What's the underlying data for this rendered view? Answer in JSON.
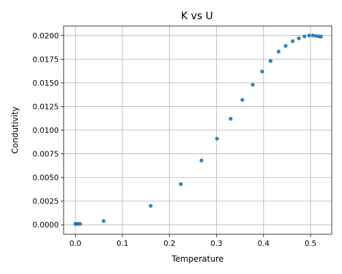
{
  "chart_data": {
    "type": "scatter",
    "title": "K vs U",
    "xlabel": "Temperature",
    "ylabel": "Condutivity",
    "xlim": [
      -0.025,
      0.545
    ],
    "ylim": [
      -0.001,
      0.021
    ],
    "xticks": [
      0.0,
      0.1,
      0.2,
      0.3,
      0.4,
      0.5
    ],
    "xtick_labels": [
      "0.0",
      "0.1",
      "0.2",
      "0.3",
      "0.4",
      "0.5"
    ],
    "yticks": [
      0.0,
      0.0025,
      0.005,
      0.0075,
      0.01,
      0.0125,
      0.015,
      0.0175,
      0.02
    ],
    "ytick_labels": [
      "0.0000",
      "0.0025",
      "0.0050",
      "0.0075",
      "0.0100",
      "0.0125",
      "0.0150",
      "0.0175",
      "0.0200"
    ],
    "grid": true,
    "color": "#1f77b4",
    "points": [
      {
        "x": 0.0,
        "y": 0.0001
      },
      {
        "x": 0.003,
        "y": 0.0001
      },
      {
        "x": 0.006,
        "y": 0.0001
      },
      {
        "x": 0.01,
        "y": 0.0001
      },
      {
        "x": 0.06,
        "y": 0.0004
      },
      {
        "x": 0.16,
        "y": 0.002
      },
      {
        "x": 0.224,
        "y": 0.0043
      },
      {
        "x": 0.268,
        "y": 0.0068
      },
      {
        "x": 0.301,
        "y": 0.0091
      },
      {
        "x": 0.33,
        "y": 0.0112
      },
      {
        "x": 0.355,
        "y": 0.0132
      },
      {
        "x": 0.377,
        "y": 0.0148
      },
      {
        "x": 0.397,
        "y": 0.0162
      },
      {
        "x": 0.415,
        "y": 0.0173
      },
      {
        "x": 0.432,
        "y": 0.0183
      },
      {
        "x": 0.447,
        "y": 0.0189
      },
      {
        "x": 0.462,
        "y": 0.0194
      },
      {
        "x": 0.475,
        "y": 0.0197
      },
      {
        "x": 0.487,
        "y": 0.0199
      },
      {
        "x": 0.497,
        "y": 0.02
      },
      {
        "x": 0.505,
        "y": 0.02
      },
      {
        "x": 0.512,
        "y": 0.01995
      },
      {
        "x": 0.518,
        "y": 0.0199
      },
      {
        "x": 0.522,
        "y": 0.01988
      }
    ]
  }
}
